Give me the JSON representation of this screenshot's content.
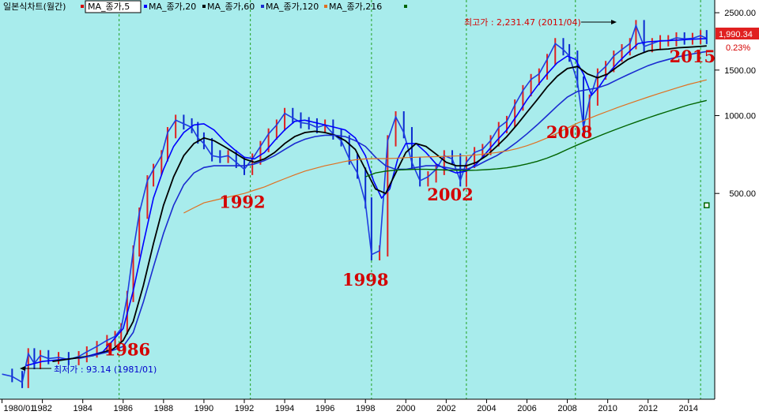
{
  "legend": {
    "title": "일본식차트(월간)",
    "items": [
      {
        "label": "MA_종가,5",
        "color": "#ffffff",
        "boxed": true
      },
      {
        "label": "MA_종가,20",
        "color": "#0000ff"
      },
      {
        "label": "MA_종가,60",
        "color": "#000000"
      },
      {
        "label": "MA_종가,120",
        "color": "#1a2bd0"
      },
      {
        "label": "MA_종가,216",
        "color": "#e07020"
      },
      {
        "label": "",
        "color": "#006400"
      }
    ]
  },
  "price_tag": {
    "value": "1,990.34",
    "change": "0.23%"
  },
  "annotations": {
    "high": "최고가 : 2,231.47 (2011/04)",
    "low": "최저가 : 93.14 (1981/01)"
  },
  "colors": {
    "plot_bg": "#a8ecec",
    "grid": "#20a020",
    "price": "#1f3de0",
    "ma20": "#0000ff",
    "ma60": "#000000",
    "ma120": "#1a2bd0",
    "ma216": "#e07020",
    "ma_long": "#006400",
    "era_labels": "#d40000"
  },
  "chart_data": {
    "type": "line",
    "y_scale": "log",
    "ylim": [
      80,
      2800
    ],
    "xlim": [
      1979.9,
      2015.3
    ],
    "y_ticks": [
      {
        "value": 2500,
        "label": "2500.00"
      },
      {
        "value": 1500,
        "label": "1500.00"
      },
      {
        "value": 1000,
        "label": "1000.00"
      },
      {
        "value": 500,
        "label": "500.00"
      }
    ],
    "x_ticks": [
      {
        "value": 1980,
        "label": "1980/01"
      },
      {
        "value": 1982,
        "label": "1982"
      },
      {
        "value": 1984,
        "label": "1984"
      },
      {
        "value": 1986,
        "label": "1986"
      },
      {
        "value": 1988,
        "label": "1988"
      },
      {
        "value": 1990,
        "label": "1990"
      },
      {
        "value": 1992,
        "label": "1992"
      },
      {
        "value": 1994,
        "label": "1994"
      },
      {
        "value": 1996,
        "label": "1996"
      },
      {
        "value": 1998,
        "label": "1998"
      },
      {
        "value": 2000,
        "label": "2000"
      },
      {
        "value": 2002,
        "label": "2002"
      },
      {
        "value": 2004,
        "label": "2004"
      },
      {
        "value": 2006,
        "label": "2006"
      },
      {
        "value": 2008,
        "label": "2008"
      },
      {
        "value": 2010,
        "label": "2010"
      },
      {
        "value": 2012,
        "label": "2012"
      },
      {
        "value": 2014,
        "label": "2014"
      }
    ],
    "vertical_markers": [
      1985.8,
      1992.3,
      1998.3,
      2003.0,
      2008.4,
      2014.6
    ],
    "era_labels": [
      {
        "text": "1986",
        "x": 1986.2,
        "y": 118
      },
      {
        "text": "1992",
        "x": 1991.9,
        "y": 440
      },
      {
        "text": "1998",
        "x": 1998.0,
        "y": 220
      },
      {
        "text": "2002",
        "x": 2002.2,
        "y": 470
      },
      {
        "text": "2008",
        "x": 2008.1,
        "y": 820
      },
      {
        "text": "2015",
        "x": 2014.2,
        "y": 1610
      }
    ],
    "high_point": {
      "x": 2011.3,
      "y": 2231.47
    },
    "low_point": {
      "x": 1981.0,
      "y": 93.14
    },
    "last_marker": {
      "x": 2014.9,
      "y": 450
    },
    "series": [
      {
        "name": "종가",
        "key": "price",
        "x": [
          1980.0,
          1980.5,
          1981.0,
          1981.3,
          1981.6,
          1981.9,
          1982.3,
          1982.8,
          1983.3,
          1983.8,
          1984.2,
          1984.7,
          1985.2,
          1985.6,
          1985.9,
          1986.2,
          1986.5,
          1986.8,
          1987.2,
          1987.5,
          1987.9,
          1988.2,
          1988.6,
          1989.0,
          1989.4,
          1989.7,
          1990.0,
          1990.4,
          1990.8,
          1991.2,
          1991.6,
          1992.0,
          1992.4,
          1992.8,
          1993.2,
          1993.6,
          1994.0,
          1994.4,
          1994.8,
          1995.2,
          1995.6,
          1996.0,
          1996.4,
          1996.8,
          1997.2,
          1997.6,
          1998.0,
          1998.3,
          1998.7,
          1999.1,
          1999.5,
          1999.9,
          2000.3,
          2000.7,
          2001.1,
          2001.5,
          2001.9,
          2002.3,
          2002.7,
          2003.0,
          2003.4,
          2003.8,
          2004.2,
          2004.6,
          2005.0,
          2005.4,
          2005.8,
          2006.2,
          2006.6,
          2007.0,
          2007.4,
          2007.8,
          2008.1,
          2008.5,
          2008.8,
          2009.1,
          2009.5,
          2009.9,
          2010.3,
          2010.7,
          2011.1,
          2011.4,
          2011.8,
          2012.2,
          2012.6,
          2013.0,
          2013.4,
          2013.8,
          2014.2,
          2014.6,
          2014.9
        ],
        "y": [
          100,
          98,
          93,
          120,
          110,
          118,
          115,
          116,
          114,
          117,
          122,
          128,
          135,
          140,
          150,
          200,
          300,
          420,
          560,
          620,
          700,
          860,
          960,
          930,
          900,
          820,
          780,
          700,
          690,
          700,
          660,
          620,
          680,
          760,
          850,
          920,
          1020,
          980,
          940,
          930,
          900,
          920,
          850,
          800,
          680,
          600,
          460,
          290,
          300,
          800,
          990,
          860,
          660,
          560,
          580,
          620,
          700,
          680,
          560,
          660,
          720,
          740,
          800,
          900,
          950,
          1100,
          1250,
          1380,
          1450,
          1650,
          1900,
          1800,
          1700,
          1350,
          900,
          1150,
          1450,
          1550,
          1700,
          1800,
          1900,
          2231,
          1850,
          1900,
          1950,
          1950,
          2000,
          1980,
          1990,
          2040,
          1990.34
        ]
      },
      {
        "name": "MA_종가,20",
        "key": "ma20",
        "x": [
          1981.2,
          1982.0,
          1983.0,
          1984.0,
          1985.0,
          1986.0,
          1986.5,
          1987.0,
          1987.5,
          1988.0,
          1988.5,
          1989.0,
          1989.5,
          1990.0,
          1990.5,
          1991.0,
          1991.5,
          1992.0,
          1992.5,
          1993.0,
          1993.5,
          1994.0,
          1994.5,
          1995.0,
          1995.5,
          1996.0,
          1996.5,
          1997.0,
          1997.5,
          1998.0,
          1998.4,
          1998.8,
          1999.2,
          1999.6,
          2000.0,
          2000.5,
          2001.0,
          2001.5,
          2002.0,
          2002.5,
          2003.0,
          2003.5,
          2004.0,
          2004.5,
          2005.0,
          2005.5,
          2006.0,
          2006.5,
          2007.0,
          2007.5,
          2008.0,
          2008.4,
          2008.8,
          2009.2,
          2009.6,
          2010.0,
          2010.5,
          2011.0,
          2011.5,
          2012.0,
          2012.5,
          2013.0,
          2013.5,
          2014.0,
          2014.5,
          2014.9
        ],
        "y": [
          108,
          112,
          114,
          116,
          122,
          150,
          210,
          320,
          480,
          620,
          760,
          860,
          920,
          930,
          880,
          800,
          740,
          690,
          680,
          720,
          800,
          880,
          950,
          960,
          940,
          920,
          900,
          880,
          820,
          700,
          560,
          480,
          520,
          680,
          780,
          780,
          720,
          650,
          620,
          600,
          610,
          650,
          720,
          800,
          880,
          1000,
          1150,
          1300,
          1450,
          1600,
          1700,
          1650,
          1450,
          1200,
          1300,
          1450,
          1600,
          1750,
          1900,
          1930,
          1940,
          1950,
          1960,
          1970,
          1980,
          1985
        ]
      },
      {
        "name": "MA_종가,60",
        "key": "ma60",
        "x": [
          1982.5,
          1983.5,
          1984.5,
          1985.5,
          1986.0,
          1986.5,
          1987.0,
          1987.5,
          1988.0,
          1988.5,
          1989.0,
          1989.5,
          1990.0,
          1990.5,
          1991.0,
          1991.5,
          1992.0,
          1992.5,
          1993.0,
          1993.5,
          1994.0,
          1994.5,
          1995.0,
          1995.5,
          1996.0,
          1996.5,
          1997.0,
          1997.5,
          1998.0,
          1998.5,
          1999.0,
          1999.5,
          2000.0,
          2000.5,
          2001.0,
          2001.5,
          2002.0,
          2002.5,
          2003.0,
          2003.5,
          2004.0,
          2004.5,
          2005.0,
          2005.5,
          2006.0,
          2006.5,
          2007.0,
          2007.5,
          2008.0,
          2008.5,
          2009.0,
          2009.5,
          2010.0,
          2010.5,
          2011.0,
          2011.5,
          2012.0,
          2012.5,
          2013.0,
          2013.5,
          2014.0,
          2014.5,
          2014.9
        ],
        "y": [
          112,
          115,
          118,
          125,
          135,
          160,
          220,
          320,
          450,
          580,
          700,
          780,
          820,
          800,
          760,
          720,
          680,
          660,
          680,
          720,
          780,
          830,
          860,
          870,
          860,
          840,
          800,
          740,
          620,
          520,
          500,
          600,
          720,
          780,
          760,
          710,
          660,
          640,
          640,
          660,
          700,
          760,
          830,
          920,
          1030,
          1150,
          1290,
          1420,
          1520,
          1550,
          1450,
          1400,
          1450,
          1550,
          1650,
          1720,
          1780,
          1800,
          1810,
          1830,
          1840,
          1850,
          1860
        ]
      },
      {
        "name": "MA_종가,120",
        "key": "ma120",
        "x": [
          1983.8,
          1984.5,
          1985.3,
          1986.0,
          1986.5,
          1987.0,
          1987.5,
          1988.0,
          1988.5,
          1989.0,
          1989.5,
          1990.0,
          1990.5,
          1991.0,
          1991.5,
          1992.0,
          1992.5,
          1993.0,
          1993.5,
          1994.0,
          1994.5,
          1995.0,
          1995.5,
          1996.0,
          1996.5,
          1997.0,
          1997.5,
          1998.0,
          1998.5,
          1999.0,
          1999.5,
          2000.0,
          2000.5,
          2001.0,
          2001.5,
          2002.0,
          2002.5,
          2003.0,
          2003.5,
          2004.0,
          2004.5,
          2005.0,
          2005.5,
          2006.0,
          2006.5,
          2007.0,
          2007.5,
          2008.0,
          2008.5,
          2009.0,
          2009.5,
          2010.0,
          2010.5,
          2011.0,
          2011.5,
          2012.0,
          2012.5,
          2013.0,
          2013.5,
          2014.0,
          2014.5,
          2014.9
        ],
        "y": [
          115,
          118,
          122,
          128,
          145,
          190,
          260,
          350,
          450,
          540,
          600,
          630,
          640,
          640,
          640,
          640,
          650,
          670,
          700,
          740,
          780,
          810,
          830,
          840,
          840,
          830,
          800,
          760,
          690,
          640,
          620,
          620,
          630,
          640,
          640,
          630,
          620,
          620,
          640,
          670,
          700,
          740,
          790,
          850,
          920,
          1000,
          1090,
          1180,
          1240,
          1260,
          1280,
          1320,
          1380,
          1440,
          1500,
          1560,
          1610,
          1650,
          1690,
          1720,
          1750,
          1770
        ]
      },
      {
        "name": "MA_종가,216",
        "key": "ma216",
        "x": [
          1989.0,
          1989.5,
          1990.0,
          1990.5,
          1991.0,
          1991.5,
          1992.0,
          1992.5,
          1993.0,
          1993.5,
          1994.0,
          1994.5,
          1995.0,
          1995.5,
          1996.0,
          1996.5,
          1997.0,
          1997.5,
          1998.0,
          1998.5,
          1999.0,
          1999.5,
          2000.0,
          2000.5,
          2001.0,
          2001.5,
          2002.0,
          2002.5,
          2003.0,
          2003.5,
          2004.0,
          2004.5,
          2005.0,
          2005.5,
          2006.0,
          2006.5,
          2007.0,
          2007.5,
          2008.0,
          2008.5,
          2009.0,
          2009.5,
          2010.0,
          2010.5,
          2011.0,
          2011.5,
          2012.0,
          2012.5,
          2013.0,
          2013.5,
          2014.0,
          2014.5,
          2014.9
        ],
        "y": [
          420,
          440,
          460,
          470,
          480,
          490,
          500,
          515,
          530,
          550,
          570,
          590,
          610,
          625,
          640,
          652,
          665,
          675,
          680,
          682,
          682,
          684,
          688,
          690,
          692,
          694,
          696,
          698,
          700,
          705,
          712,
          720,
          730,
          745,
          765,
          790,
          820,
          855,
          895,
          935,
          970,
          1005,
          1040,
          1075,
          1110,
          1145,
          1180,
          1215,
          1250,
          1285,
          1320,
          1350,
          1375
        ]
      },
      {
        "name": "",
        "key": "ma_long",
        "x": [
          1998.0,
          1998.5,
          1999.0,
          1999.5,
          2000.0,
          2000.5,
          2001.0,
          2001.5,
          2002.0,
          2002.5,
          2003.0,
          2003.5,
          2004.0,
          2004.5,
          2005.0,
          2005.5,
          2006.0,
          2006.5,
          2007.0,
          2007.5,
          2008.0,
          2008.5,
          2009.0,
          2009.5,
          2010.0,
          2010.5,
          2011.0,
          2011.5,
          2012.0,
          2012.5,
          2013.0,
          2013.5,
          2014.0,
          2014.5,
          2014.9
        ],
        "y": [
          580,
          600,
          610,
          615,
          618,
          620,
          620,
          618,
          616,
          615,
          614,
          615,
          618,
          622,
          628,
          638,
          650,
          665,
          685,
          710,
          740,
          770,
          800,
          830,
          860,
          890,
          920,
          950,
          980,
          1010,
          1040,
          1070,
          1100,
          1125,
          1145
        ]
      }
    ]
  }
}
